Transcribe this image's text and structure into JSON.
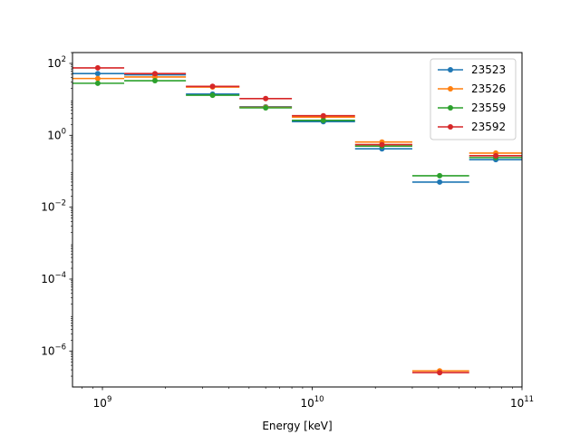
{
  "chart_data": {
    "type": "scatter",
    "title": "",
    "xlabel": "Energy [keV]",
    "ylabel": "",
    "xscale": "log",
    "yscale": "log",
    "xlim": [
      720000000.0,
      100000000000.0
    ],
    "ylim": [
      1e-07,
      200
    ],
    "grid": false,
    "legend_position": "top-right",
    "x_ticks": [
      {
        "value": 1000000000.0,
        "base": "10",
        "exp": "9"
      },
      {
        "value": 10000000000.0,
        "base": "10",
        "exp": "10"
      },
      {
        "value": 100000000000.0,
        "base": "10",
        "exp": "11"
      }
    ],
    "y_ticks": [
      {
        "value": 100.0,
        "base": "10",
        "exp": "2"
      },
      {
        "value": 1.0,
        "base": "10",
        "exp": "0"
      },
      {
        "value": 0.01,
        "base": "10",
        "exp": "−2"
      },
      {
        "value": 0.0001,
        "base": "10",
        "exp": "−4"
      },
      {
        "value": 1e-06,
        "base": "10",
        "exp": "−6"
      }
    ],
    "bins": [
      [
        720000000.0,
        1270000000.0
      ],
      [
        1270000000.0,
        2500000000.0
      ],
      [
        2500000000.0,
        4500000000.0
      ],
      [
        4500000000.0,
        8000000000.0
      ],
      [
        8000000000.0,
        16000000000.0
      ],
      [
        16000000000.0,
        30000000000.0
      ],
      [
        30000000000.0,
        56000000000.0
      ],
      [
        56000000000.0,
        100000000000.0
      ]
    ],
    "x": [
      950000000.0,
      1780000000.0,
      3350000000.0,
      6000000000.0,
      11300000000.0,
      21500000000.0,
      40500000000.0,
      75000000000.0
    ],
    "series": [
      {
        "name": "23523",
        "color": "#1f77b4",
        "values": [
          52,
          48,
          14,
          6.2,
          2.4,
          0.42,
          0.05,
          0.21
        ]
      },
      {
        "name": "23526",
        "color": "#ff7f0e",
        "values": [
          38,
          42,
          22,
          6.0,
          3.2,
          0.65,
          2.8e-07,
          0.32
        ]
      },
      {
        "name": "23559",
        "color": "#2ca02c",
        "values": [
          28,
          33,
          13,
          5.8,
          2.6,
          0.5,
          0.075,
          0.24
        ]
      },
      {
        "name": "23592",
        "color": "#d62728",
        "values": [
          75,
          52,
          23,
          10.5,
          3.5,
          0.55,
          2.5e-07,
          0.27
        ]
      }
    ]
  }
}
